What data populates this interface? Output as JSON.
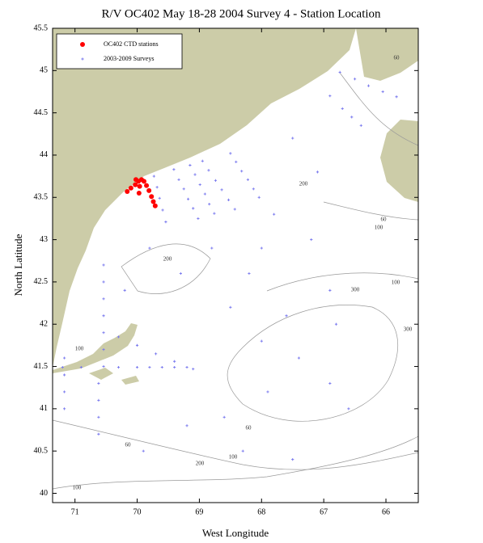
{
  "chart_data": {
    "type": "scatter",
    "title": "R/V OC402 May 18-28 2004 Survey 4 - Station Location",
    "x_label": "West Longitude",
    "y_label": "North Latitude",
    "xlim": [
      -71.36,
      -65.48
    ],
    "ylim": [
      39.89,
      45.5
    ],
    "xticks": [
      {
        "value": -71,
        "label": "71"
      },
      {
        "value": -70,
        "label": "70"
      },
      {
        "value": -69,
        "label": "69"
      },
      {
        "value": -68,
        "label": "68"
      },
      {
        "value": -67,
        "label": "67"
      },
      {
        "value": -66,
        "label": "66"
      }
    ],
    "yticks": [
      40,
      40.5,
      41,
      41.5,
      42,
      42.5,
      43,
      43.5,
      44,
      44.5,
      45,
      45.5
    ],
    "legend": "upper left",
    "contour_labels": [
      "60",
      "100",
      "200",
      "200",
      "60",
      "100",
      "100",
      "300",
      "300",
      "100",
      "60",
      "60",
      "100",
      "200"
    ],
    "series": [
      {
        "name": "OC402 CTD stations",
        "color": "#ff0000",
        "x": [
          -70.16,
          -70.1,
          -70.03,
          -69.98,
          -69.93,
          -69.89,
          -69.85,
          -69.81,
          -69.77,
          -69.74,
          -69.71,
          -69.96,
          -69.97,
          -70.02
        ],
        "values": [
          43.57,
          43.61,
          43.65,
          43.69,
          43.71,
          43.69,
          43.64,
          43.58,
          43.51,
          43.45,
          43.4,
          43.63,
          43.55,
          43.71
        ]
      },
      {
        "name": "2003-2009 Surveys",
        "color": "#7777ee",
        "x": [
          -69.73,
          -69.68,
          -69.64,
          -69.59,
          -69.54,
          -69.41,
          -69.33,
          -69.25,
          -69.18,
          -69.1,
          -69.02,
          -69.15,
          -69.07,
          -68.99,
          -68.91,
          -68.84,
          -68.76,
          -68.95,
          -68.85,
          -68.74,
          -68.64,
          -68.53,
          -68.43,
          -68.5,
          -68.41,
          -68.32,
          -68.22,
          -68.13,
          -68.04,
          -70.54,
          -70.54,
          -70.54,
          -70.54,
          -70.54,
          -70.54,
          -70.54,
          -70.62,
          -70.62,
          -70.62,
          -70.62,
          -71.17,
          -71.17,
          -71.17,
          -71.17,
          -71.2,
          -70.9,
          -70.3,
          -70.0,
          -69.8,
          -69.6,
          -69.4,
          -69.2,
          -70.3,
          -70.0,
          -69.7,
          -69.4,
          -69.1,
          -66.74,
          -66.5,
          -66.28,
          -66.05,
          -65.83,
          -66.9,
          -66.7,
          -66.55,
          -66.4,
          -68.8,
          -68.2,
          -67.8,
          -67.2,
          -66.9,
          -67.6,
          -68.5,
          -69.3,
          -69.8,
          -70.2,
          -68.0,
          -67.4,
          -66.9,
          -66.6,
          -67.9,
          -68.6,
          -69.2,
          -69.9,
          -68.3,
          -67.5,
          -66.8,
          -67.1,
          -67.5,
          -68.0
        ],
        "values": [
          43.75,
          43.62,
          43.49,
          43.35,
          43.21,
          43.83,
          43.71,
          43.6,
          43.48,
          43.37,
          43.25,
          43.88,
          43.77,
          43.65,
          43.54,
          43.42,
          43.31,
          43.93,
          43.82,
          43.7,
          43.59,
          43.47,
          43.36,
          44.02,
          43.92,
          43.81,
          43.71,
          43.6,
          43.5,
          42.7,
          42.5,
          42.3,
          42.1,
          41.9,
          41.7,
          41.5,
          41.3,
          41.1,
          40.9,
          40.7,
          41.0,
          41.2,
          41.4,
          41.6,
          41.49,
          41.49,
          41.49,
          41.49,
          41.49,
          41.49,
          41.49,
          41.49,
          41.85,
          41.75,
          41.65,
          41.56,
          41.47,
          44.98,
          44.9,
          44.82,
          44.75,
          44.69,
          44.7,
          44.55,
          44.45,
          44.35,
          42.9,
          42.6,
          43.3,
          43.0,
          42.4,
          42.1,
          42.2,
          42.6,
          42.9,
          42.4,
          41.8,
          41.6,
          41.3,
          41.0,
          41.2,
          40.9,
          40.8,
          40.5,
          40.5,
          40.4,
          42.0,
          43.8,
          44.2,
          42.9
        ]
      }
    ]
  }
}
